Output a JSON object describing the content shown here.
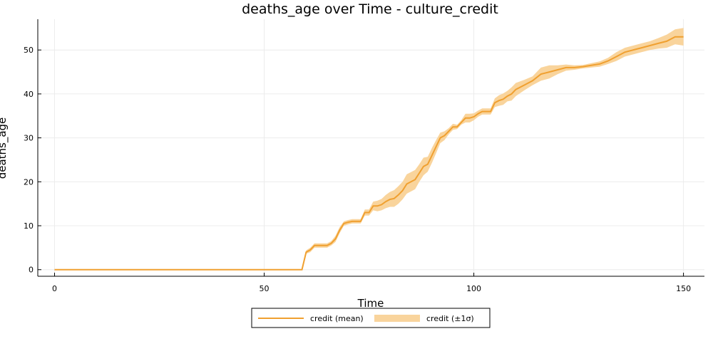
{
  "chart_data": {
    "type": "line",
    "title": "deaths_age over Time - culture_credit",
    "xlabel": "Time",
    "ylabel": "deaths_age",
    "xlim": [
      -4,
      155
    ],
    "ylim": [
      -1.5,
      57
    ],
    "xticks": [
      0,
      50,
      100,
      150
    ],
    "yticks": [
      0,
      10,
      20,
      30,
      40,
      50
    ],
    "grid": true,
    "legend_position": "bottom-center-outside",
    "colors": {
      "line": "#f0a030",
      "band": "#f9d49c"
    },
    "series": [
      {
        "name": "credit (mean)",
        "x": [
          0,
          59,
          60,
          61,
          62,
          63,
          65,
          66,
          67,
          68,
          69,
          70,
          71,
          72,
          73,
          74,
          75,
          76,
          77,
          78,
          79,
          80,
          81,
          82,
          83,
          84,
          85,
          86,
          87,
          88,
          89,
          90,
          91,
          92,
          93,
          94,
          95,
          96,
          97,
          98,
          99,
          100,
          101,
          102,
          103,
          104,
          105,
          106,
          107,
          108,
          109,
          110,
          112,
          114,
          116,
          118,
          120,
          122,
          124,
          126,
          128,
          130,
          132,
          134,
          136,
          138,
          140,
          142,
          144,
          146,
          148,
          150
        ],
        "y": [
          0,
          0,
          4,
          4.5,
          5.5,
          5.5,
          5.5,
          6,
          7,
          9,
          10.5,
          10.8,
          11,
          11,
          11,
          13,
          13,
          14.5,
          14.5,
          14.8,
          15.5,
          16,
          16.2,
          17,
          18,
          19.5,
          20,
          20.5,
          22,
          23.5,
          24,
          26,
          28,
          30,
          30.5,
          31.5,
          32.5,
          32.5,
          33.5,
          34.5,
          34.5,
          34.8,
          35.5,
          36,
          36,
          36,
          38,
          38.5,
          38.8,
          39.5,
          40,
          41,
          42,
          43,
          44.5,
          45,
          45.5,
          46,
          46,
          46.2,
          46.5,
          46.8,
          47.5,
          48.5,
          49.5,
          50,
          50.5,
          51,
          51.5,
          52,
          53,
          53
        ]
      },
      {
        "name": "credit (±1σ)",
        "x": [
          0,
          59,
          60,
          61,
          62,
          63,
          65,
          66,
          67,
          68,
          69,
          70,
          71,
          72,
          73,
          74,
          75,
          76,
          77,
          78,
          79,
          80,
          81,
          82,
          83,
          84,
          85,
          86,
          87,
          88,
          89,
          90,
          91,
          92,
          93,
          94,
          95,
          96,
          97,
          98,
          99,
          100,
          101,
          102,
          103,
          104,
          105,
          106,
          107,
          108,
          109,
          110,
          112,
          114,
          116,
          118,
          120,
          122,
          124,
          126,
          128,
          130,
          132,
          134,
          136,
          138,
          140,
          142,
          144,
          146,
          148,
          150
        ],
        "lower": [
          0,
          0,
          3.6,
          4,
          5,
          5,
          5,
          5.5,
          6.3,
          8.3,
          10,
          10.3,
          10.5,
          10.5,
          10.5,
          12.3,
          12.3,
          13.5,
          13.3,
          13.5,
          14,
          14.3,
          14.3,
          15,
          16,
          17.3,
          17.8,
          18.3,
          20,
          21.5,
          22.3,
          24.3,
          26.5,
          28.8,
          29.5,
          30.8,
          31.8,
          32,
          33,
          33.5,
          33.5,
          34,
          34.8,
          35.3,
          35.3,
          35.3,
          37,
          37.3,
          37.5,
          38.3,
          38.5,
          39.5,
          40.8,
          42,
          43,
          43.5,
          44.5,
          45.3,
          45.5,
          45.8,
          46,
          46.2,
          46.8,
          47.5,
          48.5,
          49,
          49.5,
          50,
          50.3,
          50.5,
          51.3,
          51
        ],
        "upper": [
          0,
          0,
          4.4,
          5,
          6,
          6,
          6,
          6.5,
          7.7,
          9.7,
          11,
          11.3,
          11.5,
          11.5,
          11.5,
          13.7,
          13.7,
          15.5,
          15.7,
          16.1,
          17,
          17.7,
          18.1,
          19,
          20,
          21.7,
          22.2,
          22.7,
          24,
          25.5,
          25.7,
          27.7,
          29.5,
          31.2,
          31.5,
          32.2,
          33.2,
          33,
          34,
          35.5,
          35.5,
          35.6,
          36.2,
          36.7,
          36.7,
          36.7,
          39,
          39.7,
          40.1,
          40.7,
          41.5,
          42.5,
          43.2,
          44,
          46,
          46.5,
          46.5,
          46.7,
          46.5,
          46.6,
          47,
          47.4,
          48.2,
          49.5,
          50.5,
          51,
          51.5,
          52,
          52.7,
          53.5,
          54.7,
          55
        ]
      }
    ]
  }
}
